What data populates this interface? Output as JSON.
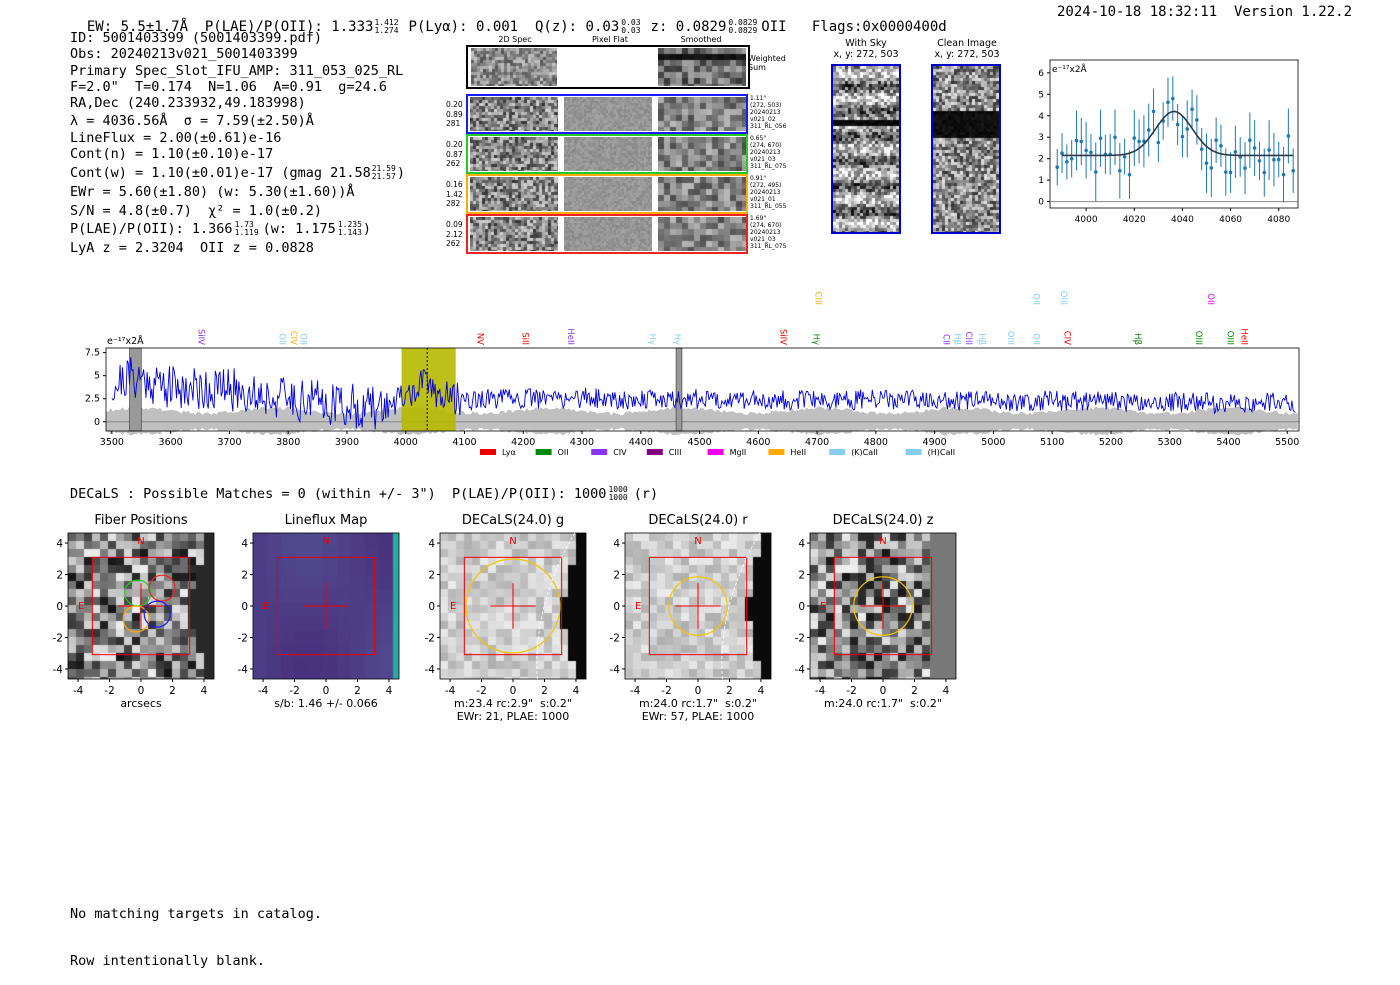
{
  "header": {
    "left": "EW: 5.5±1.7Å  P(LAE)/P(OII): 1.333",
    "left_sup": "1.412",
    "left_sub": "1.274",
    "plya": "P(Lyα): 0.001  Q(z): 0.03",
    "qz_sup": "0.03",
    "qz_sub": "0.03",
    "z": "z: 0.0829",
    "z_sup": "0.0829",
    "z_sub": "0.0829",
    "z_tail": "OII   Flags:0x0000400d",
    "right": "2024-10-18 18:32:11  Version 1.22.2"
  },
  "info": {
    "lines": [
      "ID: 5001403399 (5001403399.pdf)",
      "Obs: 20240213v021_5001403399",
      "Primary Spec_Slot_IFU_AMP: 311_053_025_RL",
      "F=2.0\"  T=0.174  N=1.06  A=0.91  g=24.6",
      "RA,Dec (240.233932,49.183998)",
      "λ = 4036.56Å  σ = 7.59(±2.50)Å",
      "LineFlux = 2.00(±0.61)e-16",
      "Cont(n) = 1.10(±0.10)e-17"
    ],
    "contw": "Cont(w) = 1.10(±0.01)e-17 (gmag 21.58",
    "contw_sup": "21.59",
    "contw_sub": "21.57",
    "contw_tail": ")",
    "ewr": "EWr = 5.60(±1.80) (w: 5.30(±1.60))Å",
    "sn": "S/N = 4.8(±0.7)  χ² = 1.0(±0.2)",
    "plae": "P(LAE)/P(OII): 1.366",
    "plae_sup": "1.73",
    "plae_sub": "1.119",
    "plae_w": "(w: 1.175",
    "plae_w_sup": "1.235",
    "plae_w_sub": "1.143",
    "plae_tail": ")",
    "lyaz": "LyA z = 2.3204  OII z = 0.0828"
  },
  "cutouts": {
    "col_titles": [
      "2D Spec",
      "Pixel Flat",
      "Smoothed"
    ],
    "weighted_sum": "Weighted\nSum",
    "rows": [
      {
        "left": "0.20\n0.89\n281",
        "right": "1.11\"\n(272, 503)\n20240213\nv021_02\n311_RL_056",
        "color": "#1a1aff"
      },
      {
        "left": "0.20\n0.87\n262",
        "right": "0.65\"\n(274, 670)\n20240213\nv021_03\n311_RL_075",
        "color": "#22cc22"
      },
      {
        "left": "0.16\n1.42\n282",
        "right": "0.91\"\n(272, 495)\n20240213\nv021_01\n311_RL_055",
        "color": "#ffaa00"
      },
      {
        "left": "0.09\n2.12\n262",
        "right": "1.69\"\n(274, 670)\n20240213\nv021_03\n311_RL_075",
        "color": "#ee2222"
      }
    ]
  },
  "sky": {
    "with_sky": "With Sky",
    "with_sky_xy": "x, y: 272, 503",
    "clean": "Clean Image",
    "clean_xy": "x, y: 272, 503"
  },
  "zoom": {
    "unit": "e⁻¹⁷x2Å",
    "xticks": [
      4000,
      4020,
      4040,
      4060,
      4080
    ],
    "yticks": [
      0,
      1,
      2,
      3,
      4,
      5,
      6
    ],
    "xlim": [
      3985,
      4088
    ],
    "ylim": [
      -0.3,
      6.6
    ]
  },
  "chart_data": {
    "type": "line",
    "title": "",
    "xlabel": "",
    "ylabel": "e⁻¹⁷x2Å",
    "xlim": [
      3490,
      5520
    ],
    "ylim": [
      -1.0,
      8.0
    ],
    "xticks": [
      3500,
      3600,
      3700,
      3800,
      3900,
      4000,
      4100,
      4200,
      4300,
      4400,
      4500,
      4600,
      4700,
      4800,
      4900,
      5000,
      5100,
      5200,
      5300,
      5400,
      5500
    ],
    "yticks": [
      0.0,
      2.5,
      5.0,
      7.5
    ],
    "highlight_window": [
      3993,
      4085
    ],
    "line_center": 4036.56,
    "masked_regions": [
      [
        3530,
        3550
      ],
      [
        4460,
        4470
      ]
    ],
    "series": [
      {
        "name": "",
        "color": "#0000dd",
        "description_points": [
          [
            3500,
            3.8
          ],
          [
            3530,
            5.0
          ],
          [
            3560,
            4.5
          ],
          [
            3600,
            3.8
          ],
          [
            3650,
            3.6
          ],
          [
            3700,
            3.5
          ],
          [
            3750,
            3.0
          ],
          [
            3800,
            2.5
          ],
          [
            3850,
            2.3
          ],
          [
            3900,
            1.8
          ],
          [
            3950,
            1.4
          ],
          [
            4000,
            2.6
          ],
          [
            4036,
            4.3
          ],
          [
            4060,
            2.8
          ],
          [
            4100,
            2.4
          ],
          [
            4200,
            2.5
          ],
          [
            4300,
            2.6
          ],
          [
            4400,
            2.4
          ],
          [
            4500,
            2.5
          ],
          [
            4600,
            2.4
          ],
          [
            4700,
            2.3
          ],
          [
            4800,
            2.4
          ],
          [
            4900,
            2.3
          ],
          [
            5000,
            2.2
          ],
          [
            5100,
            2.3
          ],
          [
            5200,
            2.2
          ],
          [
            5300,
            2.1
          ],
          [
            5400,
            2.0
          ],
          [
            5500,
            2.1
          ]
        ]
      }
    ],
    "lines": [
      {
        "label": "SiIV",
        "x": 3642,
        "color": "#8833ee",
        "row": "low"
      },
      {
        "label": "OII",
        "x": 3780,
        "color": "#88ccee",
        "row": "low"
      },
      {
        "label": "CIV",
        "x": 3800,
        "color": "#ffaa00",
        "row": "low"
      },
      {
        "label": "OII",
        "x": 3816,
        "color": "#88ccee",
        "row": "low"
      },
      {
        "label": "NV",
        "x": 4117,
        "color": "#ee0000",
        "row": "low"
      },
      {
        "label": "SiII",
        "x": 4194,
        "color": "#ee0000",
        "row": "low"
      },
      {
        "label": "HeII",
        "x": 4271,
        "color": "#8833ee",
        "row": "low"
      },
      {
        "label": "Hγ",
        "x": 4410,
        "color": "#88ccee",
        "row": "low"
      },
      {
        "label": "Hγ",
        "x": 4452,
        "color": "#88ccee",
        "row": "low"
      },
      {
        "label": "SiIV",
        "x": 4633,
        "color": "#ee0000",
        "row": "low"
      },
      {
        "label": "Hγ",
        "x": 4689,
        "color": "#008800",
        "row": "low"
      },
      {
        "label": "CIII",
        "x": 4692,
        "color": "#ffaa00",
        "row": "high"
      },
      {
        "label": "CII",
        "x": 4910,
        "color": "#8833ee",
        "row": "low"
      },
      {
        "label": "Hβ",
        "x": 4929,
        "color": "#88ccee",
        "row": "low"
      },
      {
        "label": "CIII",
        "x": 4948,
        "color": "#8833ee",
        "row": "low"
      },
      {
        "label": "Hβ",
        "x": 4970,
        "color": "#88ccee",
        "row": "low"
      },
      {
        "label": "OIII",
        "x": 5020,
        "color": "#88ccee",
        "row": "low"
      },
      {
        "label": "OII",
        "x": 5063,
        "color": "#88ccee",
        "row": "low"
      },
      {
        "label": "OII",
        "x": 5063,
        "color": "#88ccee",
        "row": "high"
      },
      {
        "label": "OIII",
        "x": 5110,
        "color": "#88ccee",
        "row": "high"
      },
      {
        "label": "CIV",
        "x": 5116,
        "color": "#ee0000",
        "row": "low"
      },
      {
        "label": "Hβ",
        "x": 5236,
        "color": "#008800",
        "row": "low"
      },
      {
        "label": "OIII",
        "x": 5340,
        "color": "#008800",
        "row": "low"
      },
      {
        "label": "OII",
        "x": 5360,
        "color": "#ee00ee",
        "row": "high"
      },
      {
        "label": "OIII",
        "x": 5393,
        "color": "#008800",
        "row": "low"
      },
      {
        "label": "HeII",
        "x": 5417,
        "color": "#ee0000",
        "row": "low"
      }
    ],
    "legend": [
      {
        "name": "Lyα",
        "color": "#ee0000"
      },
      {
        "name": "OII",
        "color": "#008800"
      },
      {
        "name": "CIV",
        "color": "#8833ee"
      },
      {
        "name": "CIII",
        "color": "#800080"
      },
      {
        "name": "MgII",
        "color": "#ee00ee"
      },
      {
        "name": "HeII",
        "color": "#ffaa00"
      },
      {
        "name": "(K)CaII",
        "color": "#88ccee"
      },
      {
        "name": "(H)CaII",
        "color": "#88ccee"
      }
    ],
    "legend_position": "bottom-center"
  },
  "decals": {
    "line": "DECaLS : Possible Matches = 0 (within +/- 3\")  P(LAE)/P(OII): 1000",
    "sup": "1000",
    "sub": "1000",
    "tail": "(r)",
    "ticks": [
      4,
      2,
      0,
      -2,
      -4
    ],
    "xticks": [
      -4,
      -2,
      0,
      2,
      4
    ],
    "north": "N",
    "east": "E",
    "panels": [
      {
        "title": "Fiber Positions",
        "caption": "arcsecs"
      },
      {
        "title": "Lineflux Map",
        "caption": "s/b: 1.46 +/- 0.066"
      },
      {
        "title": "DECaLS(24.0) g",
        "caption": "m:23.4 rc:2.9\"  s:0.2\"\nEWr: 21, PLAE: 1000"
      },
      {
        "title": "DECaLS(24.0) r",
        "caption": "m:24.0 rc:1.7\"  s:0.2\"\nEWr: 57, PLAE: 1000"
      },
      {
        "title": "DECaLS(24.0) z",
        "caption": "m:24.0 rc:1.7\"  s:0.2\""
      }
    ]
  },
  "footer": {
    "line1": "No matching targets in catalog.",
    "line2": "Row intentionally blank."
  }
}
